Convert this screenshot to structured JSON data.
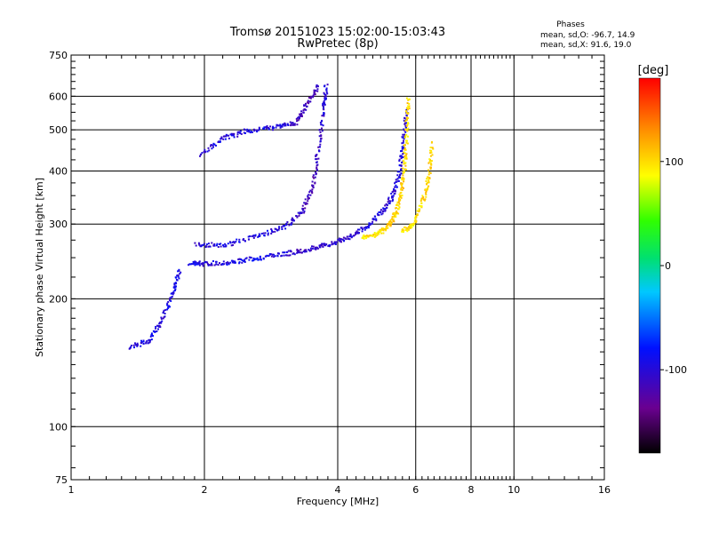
{
  "chart_data": {
    "type": "scatter",
    "title": "Tromsø 20151023 15:02:00-15:03:43",
    "subtitle": "RwPretec (8p)",
    "xlabel": "Frequency [MHz]",
    "ylabel": "Stationary phase Virtual Height [km]",
    "x_scale": "log",
    "y_scale": "log",
    "xlim": [
      1,
      16
    ],
    "ylim": [
      75,
      750
    ],
    "x_ticks": [
      "1",
      "2",
      "4",
      "6",
      "8",
      "10",
      "16"
    ],
    "y_ticks": [
      "75",
      "100",
      "200",
      "300",
      "400",
      "500",
      "600",
      "750"
    ],
    "grid": true,
    "phase_box": {
      "title": "Phases",
      "line_o": "mean, sd,O: -96.7, 14.9",
      "line_x": "mean, sd,X:  91.6, 19.0"
    },
    "colorbar": {
      "label": "[deg]",
      "ticks": [
        "100",
        "0",
        "-100"
      ],
      "range": [
        -180,
        180
      ]
    },
    "traces": [
      {
        "name": "",
        "points": [
          [
            1.85,
            244,
            -90
          ],
          [
            2.0,
            243,
            -100
          ],
          [
            2.3,
            245,
            -95
          ],
          [
            2.6,
            250,
            -90
          ],
          [
            3.0,
            256,
            -100
          ],
          [
            3.4,
            262,
            -110
          ],
          [
            3.8,
            270,
            -100
          ],
          [
            4.2,
            280,
            -105
          ],
          [
            4.6,
            295,
            -100
          ],
          [
            5.0,
            320,
            -95
          ],
          [
            5.3,
            350,
            -100
          ],
          [
            5.5,
            400,
            -95
          ],
          [
            5.6,
            470,
            -100
          ],
          [
            5.7,
            560,
            -110
          ]
        ]
      },
      {
        "name": "",
        "points": [
          [
            1.9,
            270,
            -100
          ],
          [
            2.2,
            268,
            -95
          ],
          [
            2.6,
            282,
            -100
          ],
          [
            3.0,
            295,
            -95
          ],
          [
            3.3,
            320,
            -110
          ],
          [
            3.5,
            370,
            -120
          ],
          [
            3.6,
            450,
            -110
          ],
          [
            3.7,
            560,
            -100
          ],
          [
            3.75,
            640,
            -100
          ]
        ]
      },
      {
        "name": "",
        "points": [
          [
            1.95,
            440,
            -100
          ],
          [
            2.2,
            480,
            -95
          ],
          [
            2.5,
            500,
            -100
          ],
          [
            2.9,
            510,
            -95
          ],
          [
            3.2,
            520,
            -110
          ],
          [
            3.4,
            580,
            -120
          ],
          [
            3.6,
            640,
            -115
          ]
        ]
      },
      {
        "name": "",
        "points": [
          [
            4.5,
            280,
            100
          ],
          [
            4.9,
            285,
            95
          ],
          [
            5.2,
            300,
            110
          ],
          [
            5.4,
            320,
            100
          ],
          [
            5.55,
            360,
            105
          ],
          [
            5.65,
            420,
            100
          ],
          [
            5.7,
            500,
            95
          ],
          [
            5.75,
            600,
            105
          ]
        ]
      },
      {
        "name": "",
        "points": [
          [
            5.6,
            290,
            100
          ],
          [
            5.9,
            300,
            95
          ],
          [
            6.2,
            340,
            100
          ],
          [
            6.4,
            390,
            105
          ],
          [
            6.5,
            470,
            100
          ]
        ]
      },
      {
        "name": "",
        "points": [
          [
            1.35,
            155,
            -100
          ],
          [
            1.5,
            160,
            -95
          ],
          [
            1.6,
            180,
            -100
          ],
          [
            1.7,
            210,
            -90
          ],
          [
            1.75,
            235,
            -95
          ]
        ]
      }
    ]
  }
}
